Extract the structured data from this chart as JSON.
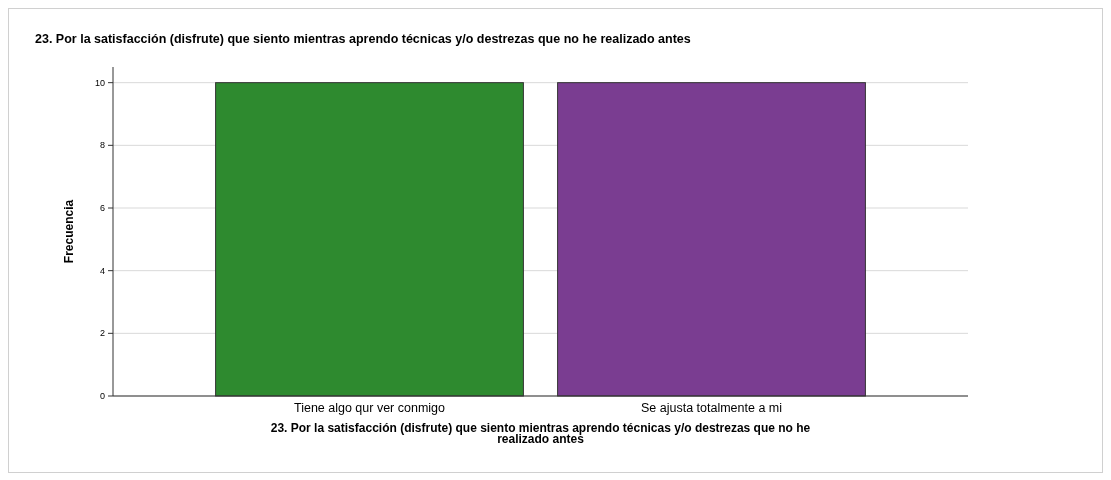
{
  "chart_data": {
    "type": "bar",
    "title": "23. Por la satisfacción (disfrute) que siento mientras aprendo técnicas y/o destrezas que no he realizado antes",
    "xlabel": "23. Por la satisfacción (disfrute) que siento mientras aprendo técnicas y/o destrezas que no he realizado antes",
    "ylabel": "Frecuencia",
    "categories": [
      "Tiene algo qur ver conmigo",
      "Se ajusta totalmente a mi"
    ],
    "values": [
      10,
      10
    ],
    "colors": [
      "#2e8a2f",
      "#7a3d91"
    ],
    "ylim": [
      0,
      10.5
    ],
    "yticks": [
      0,
      2,
      4,
      6,
      8,
      10
    ],
    "grid": "y"
  }
}
